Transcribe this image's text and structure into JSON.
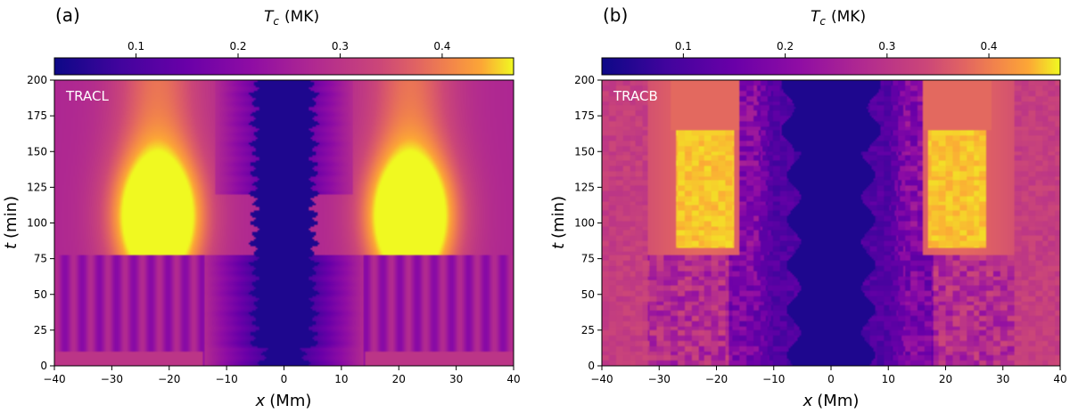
{
  "chart_data": [
    {
      "type": "heatmap",
      "panel_label": "(a)",
      "annotation": "TRACL",
      "colorbar_label": "T",
      "colorbar_label_sub": "c",
      "colorbar_label_unit": "(MK)",
      "colorbar_ticks": [
        "0.1",
        "0.2",
        "0.3",
        "0.4"
      ],
      "colorbar_range": [
        0.02,
        0.47
      ],
      "colormap": "plasma",
      "xlabel": "x",
      "xlabel_unit": "(Mm)",
      "ylabel": "t",
      "ylabel_unit": "(min)",
      "x_ticks": [
        "−40",
        "−30",
        "−20",
        "−10",
        "0",
        "10",
        "20",
        "30",
        "40"
      ],
      "y_ticks": [
        "0",
        "25",
        "50",
        "75",
        "100",
        "125",
        "150",
        "175",
        "200"
      ],
      "xlim": [
        -40,
        40
      ],
      "ylim": [
        0,
        200
      ],
      "grid": false,
      "description_values": {
        "hot_columns_x": [
          -22,
          22
        ],
        "peak_temperature_MK": 0.47,
        "peak_time_min": 105,
        "cool_core_halfwidth_Mm": 6,
        "transition_time_min": 78
      }
    },
    {
      "type": "heatmap",
      "panel_label": "(b)",
      "annotation": "TRACB",
      "colorbar_label": "T",
      "colorbar_label_sub": "c",
      "colorbar_label_unit": "(MK)",
      "colorbar_ticks": [
        "0.1",
        "0.2",
        "0.3",
        "0.4"
      ],
      "colorbar_range": [
        0.02,
        0.47
      ],
      "colormap": "plasma",
      "xlabel": "x",
      "xlabel_unit": "(Mm)",
      "ylabel": "t",
      "ylabel_unit": "(min)",
      "x_ticks": [
        "−40",
        "−30",
        "−20",
        "−10",
        "0",
        "10",
        "20",
        "30",
        "40"
      ],
      "y_ticks": [
        "0",
        "25",
        "50",
        "75",
        "100",
        "125",
        "150",
        "175",
        "200"
      ],
      "xlim": [
        -40,
        40
      ],
      "ylim": [
        0,
        200
      ],
      "grid": false,
      "description_values": {
        "hot_columns_x": [
          -22,
          22
        ],
        "peak_temperature_MK": 0.47,
        "hot_time_range_min": [
          80,
          165
        ],
        "cool_core_halfwidth_Mm": 8,
        "transition_time_min": 78
      }
    }
  ]
}
